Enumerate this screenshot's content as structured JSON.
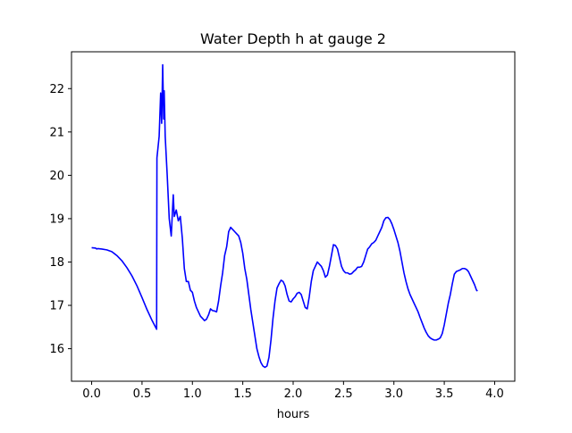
{
  "chart_data": {
    "type": "line",
    "title": "Water Depth h at gauge 2",
    "xlabel": "hours",
    "ylabel": "",
    "xlim": [
      -0.2,
      4.2
    ],
    "ylim": [
      15.25,
      22.85
    ],
    "xticks": [
      0.0,
      0.5,
      1.0,
      1.5,
      2.0,
      2.5,
      3.0,
      3.5,
      4.0
    ],
    "xtick_labels": [
      "0.0",
      "0.5",
      "1.0",
      "1.5",
      "2.0",
      "2.5",
      "3.0",
      "3.5",
      "4.0"
    ],
    "yticks": [
      16,
      17,
      18,
      19,
      20,
      21,
      22
    ],
    "ytick_labels": [
      "16",
      "17",
      "18",
      "19",
      "20",
      "21",
      "22"
    ],
    "grid": false,
    "series": [
      {
        "name": "",
        "color": "#0000ff",
        "points": [
          [
            0.0,
            18.33
          ],
          [
            0.04,
            18.32
          ],
          [
            0.05,
            18.3
          ],
          [
            0.06,
            18.31
          ],
          [
            0.1,
            18.3
          ],
          [
            0.15,
            18.28
          ],
          [
            0.2,
            18.24
          ],
          [
            0.25,
            18.15
          ],
          [
            0.3,
            18.03
          ],
          [
            0.35,
            17.87
          ],
          [
            0.4,
            17.68
          ],
          [
            0.45,
            17.45
          ],
          [
            0.5,
            17.18
          ],
          [
            0.55,
            16.9
          ],
          [
            0.6,
            16.65
          ],
          [
            0.645,
            16.45
          ],
          [
            0.648,
            20.4
          ],
          [
            0.67,
            20.9
          ],
          [
            0.685,
            21.9
          ],
          [
            0.695,
            21.2
          ],
          [
            0.705,
            22.55
          ],
          [
            0.715,
            21.3
          ],
          [
            0.72,
            21.95
          ],
          [
            0.73,
            20.9
          ],
          [
            0.75,
            20.0
          ],
          [
            0.77,
            19.0
          ],
          [
            0.79,
            18.6
          ],
          [
            0.81,
            19.55
          ],
          [
            0.82,
            19.05
          ],
          [
            0.84,
            19.2
          ],
          [
            0.86,
            18.95
          ],
          [
            0.88,
            19.05
          ],
          [
            0.9,
            18.55
          ],
          [
            0.92,
            17.85
          ],
          [
            0.94,
            17.55
          ],
          [
            0.96,
            17.55
          ],
          [
            0.98,
            17.35
          ],
          [
            1.0,
            17.3
          ],
          [
            1.02,
            17.1
          ],
          [
            1.04,
            16.95
          ],
          [
            1.06,
            16.85
          ],
          [
            1.08,
            16.75
          ],
          [
            1.1,
            16.7
          ],
          [
            1.12,
            16.65
          ],
          [
            1.14,
            16.68
          ],
          [
            1.16,
            16.78
          ],
          [
            1.18,
            16.92
          ],
          [
            1.2,
            16.88
          ],
          [
            1.22,
            16.87
          ],
          [
            1.24,
            16.85
          ],
          [
            1.26,
            17.1
          ],
          [
            1.28,
            17.45
          ],
          [
            1.3,
            17.75
          ],
          [
            1.32,
            18.15
          ],
          [
            1.34,
            18.35
          ],
          [
            1.36,
            18.7
          ],
          [
            1.38,
            18.8
          ],
          [
            1.4,
            18.75
          ],
          [
            1.42,
            18.7
          ],
          [
            1.44,
            18.65
          ],
          [
            1.46,
            18.6
          ],
          [
            1.48,
            18.45
          ],
          [
            1.5,
            18.2
          ],
          [
            1.52,
            17.85
          ],
          [
            1.54,
            17.6
          ],
          [
            1.56,
            17.25
          ],
          [
            1.58,
            16.9
          ],
          [
            1.6,
            16.6
          ],
          [
            1.62,
            16.3
          ],
          [
            1.64,
            16.0
          ],
          [
            1.66,
            15.82
          ],
          [
            1.68,
            15.68
          ],
          [
            1.7,
            15.6
          ],
          [
            1.72,
            15.57
          ],
          [
            1.74,
            15.6
          ],
          [
            1.76,
            15.8
          ],
          [
            1.78,
            16.2
          ],
          [
            1.8,
            16.7
          ],
          [
            1.82,
            17.1
          ],
          [
            1.84,
            17.4
          ],
          [
            1.86,
            17.5
          ],
          [
            1.88,
            17.58
          ],
          [
            1.9,
            17.55
          ],
          [
            1.92,
            17.45
          ],
          [
            1.94,
            17.25
          ],
          [
            1.96,
            17.1
          ],
          [
            1.98,
            17.08
          ],
          [
            2.0,
            17.15
          ],
          [
            2.02,
            17.2
          ],
          [
            2.04,
            17.28
          ],
          [
            2.06,
            17.3
          ],
          [
            2.08,
            17.25
          ],
          [
            2.1,
            17.1
          ],
          [
            2.12,
            16.95
          ],
          [
            2.14,
            16.92
          ],
          [
            2.16,
            17.2
          ],
          [
            2.18,
            17.55
          ],
          [
            2.2,
            17.8
          ],
          [
            2.22,
            17.9
          ],
          [
            2.24,
            18.0
          ],
          [
            2.26,
            17.95
          ],
          [
            2.28,
            17.9
          ],
          [
            2.3,
            17.8
          ],
          [
            2.32,
            17.65
          ],
          [
            2.34,
            17.7
          ],
          [
            2.36,
            17.9
          ],
          [
            2.38,
            18.15
          ],
          [
            2.4,
            18.4
          ],
          [
            2.42,
            18.38
          ],
          [
            2.44,
            18.3
          ],
          [
            2.46,
            18.1
          ],
          [
            2.48,
            17.9
          ],
          [
            2.5,
            17.8
          ],
          [
            2.52,
            17.75
          ],
          [
            2.54,
            17.75
          ],
          [
            2.56,
            17.72
          ],
          [
            2.58,
            17.73
          ],
          [
            2.6,
            17.78
          ],
          [
            2.62,
            17.82
          ],
          [
            2.64,
            17.88
          ],
          [
            2.66,
            17.88
          ],
          [
            2.68,
            17.9
          ],
          [
            2.7,
            18.0
          ],
          [
            2.72,
            18.15
          ],
          [
            2.74,
            18.3
          ],
          [
            2.76,
            18.35
          ],
          [
            2.78,
            18.42
          ],
          [
            2.8,
            18.45
          ],
          [
            2.82,
            18.5
          ],
          [
            2.84,
            18.6
          ],
          [
            2.86,
            18.7
          ],
          [
            2.88,
            18.8
          ],
          [
            2.9,
            18.95
          ],
          [
            2.92,
            19.02
          ],
          [
            2.94,
            19.03
          ],
          [
            2.96,
            18.98
          ],
          [
            2.98,
            18.88
          ],
          [
            3.0,
            18.75
          ],
          [
            3.02,
            18.6
          ],
          [
            3.04,
            18.45
          ],
          [
            3.06,
            18.25
          ],
          [
            3.08,
            18.0
          ],
          [
            3.1,
            17.75
          ],
          [
            3.12,
            17.55
          ],
          [
            3.14,
            17.38
          ],
          [
            3.16,
            17.25
          ],
          [
            3.18,
            17.15
          ],
          [
            3.2,
            17.05
          ],
          [
            3.22,
            16.95
          ],
          [
            3.24,
            16.85
          ],
          [
            3.26,
            16.72
          ],
          [
            3.28,
            16.6
          ],
          [
            3.3,
            16.48
          ],
          [
            3.32,
            16.38
          ],
          [
            3.34,
            16.3
          ],
          [
            3.36,
            16.25
          ],
          [
            3.38,
            16.22
          ],
          [
            3.4,
            16.2
          ],
          [
            3.42,
            16.2
          ],
          [
            3.44,
            16.22
          ],
          [
            3.46,
            16.25
          ],
          [
            3.48,
            16.35
          ],
          [
            3.5,
            16.55
          ],
          [
            3.52,
            16.8
          ],
          [
            3.54,
            17.05
          ],
          [
            3.56,
            17.25
          ],
          [
            3.58,
            17.5
          ],
          [
            3.6,
            17.72
          ],
          [
            3.62,
            17.78
          ],
          [
            3.64,
            17.8
          ],
          [
            3.66,
            17.82
          ],
          [
            3.68,
            17.85
          ],
          [
            3.7,
            17.85
          ],
          [
            3.72,
            17.83
          ],
          [
            3.74,
            17.78
          ],
          [
            3.76,
            17.68
          ],
          [
            3.78,
            17.58
          ],
          [
            3.8,
            17.48
          ],
          [
            3.82,
            17.35
          ],
          [
            3.83,
            17.33
          ]
        ]
      }
    ]
  }
}
